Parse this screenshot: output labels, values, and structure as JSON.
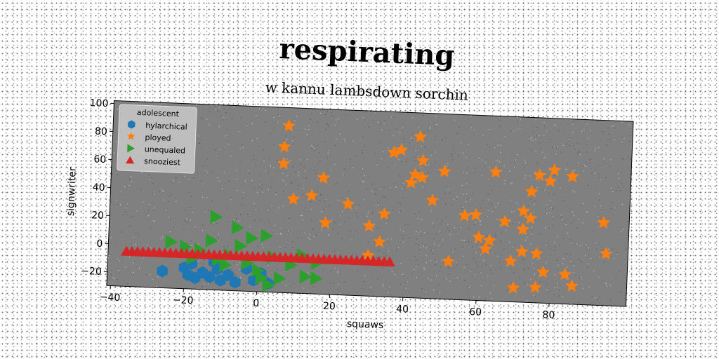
{
  "chart_data": {
    "type": "scatter",
    "title": "respirating",
    "subtitle": "w kannu lambsdown sorchin",
    "xlabel": "squaws",
    "ylabel": "signwriter",
    "xlim": [
      -41,
      101
    ],
    "ylim": [
      -30,
      102
    ],
    "xticks": [
      -40,
      -20,
      0,
      20,
      40,
      60,
      80
    ],
    "yticks": [
      -20,
      0,
      20,
      40,
      60,
      80,
      100
    ],
    "grid": false,
    "plot_background": "#808080",
    "legend": {
      "title": "adolescent",
      "placement": "top-left"
    },
    "series": [
      {
        "name": "hylarchical",
        "marker": "hexagon",
        "color": "#1f77b4",
        "points": [
          [
            -26,
            -18
          ],
          [
            -20,
            -15
          ],
          [
            -19,
            -20
          ],
          [
            -17,
            -22
          ],
          [
            -15,
            -18
          ],
          [
            -13,
            -21
          ],
          [
            -11,
            -15
          ],
          [
            -10,
            -23
          ],
          [
            -8,
            -19
          ],
          [
            -6,
            -24
          ],
          [
            -3,
            -14
          ],
          [
            -1,
            -22
          ],
          [
            1,
            -17
          ],
          [
            3,
            -24
          ],
          [
            -18,
            -12
          ],
          [
            -12,
            -10
          ]
        ]
      },
      {
        "name": "ployed",
        "marker": "star",
        "color": "#ff7f0e",
        "points": [
          [
            7,
            89
          ],
          [
            6,
            74
          ],
          [
            6,
            62
          ],
          [
            9,
            37
          ],
          [
            14,
            40
          ],
          [
            17,
            53
          ],
          [
            18,
            21
          ],
          [
            24,
            35
          ],
          [
            30,
            20
          ],
          [
            30,
            -1
          ],
          [
            33,
            9
          ],
          [
            34,
            29
          ],
          [
            36,
            73
          ],
          [
            38,
            75
          ],
          [
            41,
            52
          ],
          [
            42,
            58
          ],
          [
            43,
            85
          ],
          [
            44,
            56
          ],
          [
            44,
            68
          ],
          [
            47,
            40
          ],
          [
            50,
            61
          ],
          [
            52,
            -3
          ],
          [
            56,
            30
          ],
          [
            59,
            31
          ],
          [
            60,
            15
          ],
          [
            62,
            7
          ],
          [
            63,
            13
          ],
          [
            64,
            62
          ],
          [
            67,
            27
          ],
          [
            69,
            -1
          ],
          [
            70,
            -20
          ],
          [
            72,
            22
          ],
          [
            72,
            6
          ],
          [
            72,
            35
          ],
          [
            74,
            49
          ],
          [
            74,
            30
          ],
          [
            76,
            5
          ],
          [
            76,
            61
          ],
          [
            76,
            -19
          ],
          [
            78,
            -8
          ],
          [
            79,
            57
          ],
          [
            80,
            65
          ],
          [
            84,
            -9
          ],
          [
            85,
            61
          ],
          [
            86,
            -17
          ],
          [
            94,
            29
          ],
          [
            95,
            7
          ]
        ]
      },
      {
        "name": "unequaled",
        "marker": "triangle-right",
        "color": "#2ca02c",
        "points": [
          [
            -12,
            22
          ],
          [
            -6,
            15
          ],
          [
            -2,
            8
          ],
          [
            2,
            10
          ],
          [
            -24,
            3
          ],
          [
            -20,
            0
          ],
          [
            -16,
            -2
          ],
          [
            -13,
            5
          ],
          [
            -11,
            -8
          ],
          [
            -8,
            -5
          ],
          [
            -5,
            2
          ],
          [
            -3,
            -10
          ],
          [
            0,
            -15
          ],
          [
            1,
            -20
          ],
          [
            3,
            -25
          ],
          [
            6,
            -20
          ],
          [
            9,
            -10
          ],
          [
            13,
            -18
          ],
          [
            16,
            -19
          ],
          [
            16,
            -8
          ],
          [
            -18,
            -8
          ],
          [
            -9,
            -12
          ],
          [
            4,
            -5
          ],
          [
            12,
            -3
          ]
        ]
      },
      {
        "name": "snooziest",
        "marker": "triangle-up",
        "color": "#d62728",
        "points": []
      }
    ]
  }
}
